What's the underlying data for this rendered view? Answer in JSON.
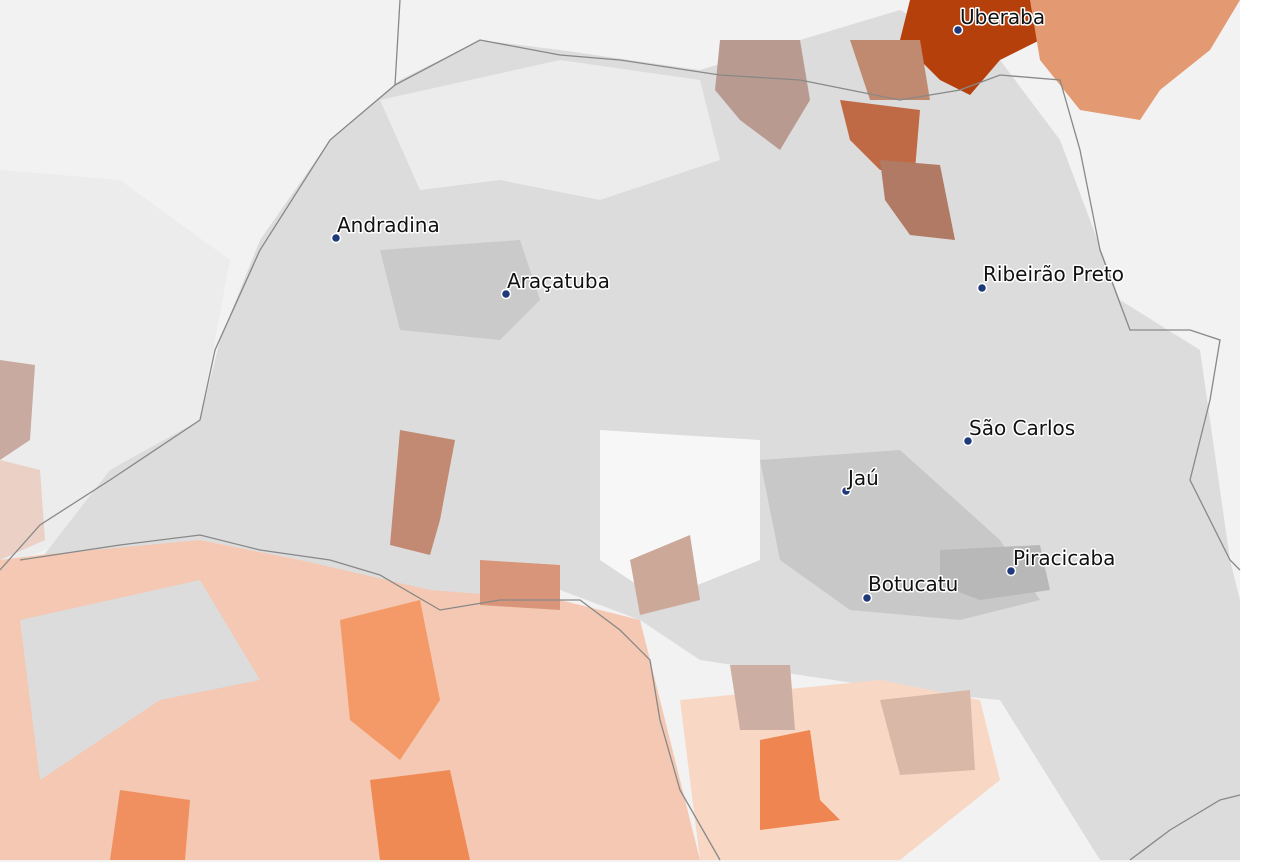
{
  "cities": [
    {
      "name": "Uberaba"
    },
    {
      "name": "Andradina"
    },
    {
      "name": "Araçatuba"
    },
    {
      "name": "Ribeirão Preto"
    },
    {
      "name": "São Carlos"
    },
    {
      "name": "Jaú"
    },
    {
      "name": "Piracicaba"
    },
    {
      "name": "Botucatu"
    }
  ]
}
